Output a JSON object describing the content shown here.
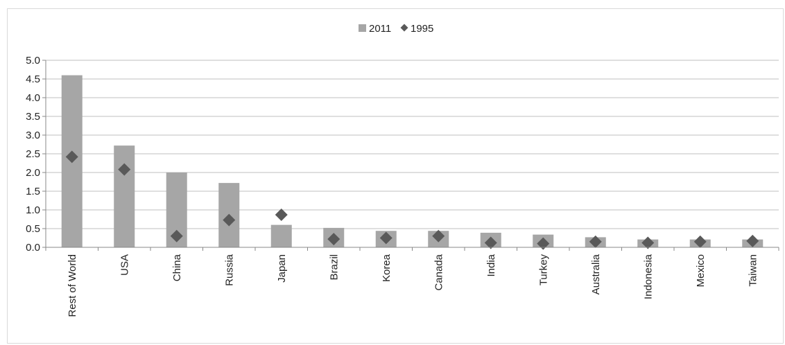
{
  "chart_data": {
    "type": "bar",
    "title": "",
    "xlabel": "",
    "ylabel": "",
    "ylim": [
      0,
      5.0
    ],
    "yticks": [
      "0.0",
      "0.5",
      "1.0",
      "1.5",
      "2.0",
      "2.5",
      "3.0",
      "3.5",
      "4.0",
      "4.5",
      "5.0"
    ],
    "grid": true,
    "legend_position": "top-center",
    "categories": [
      "Rest of World",
      "USA",
      "China",
      "Russia",
      "Japan",
      "Brazil",
      "Korea",
      "Canada",
      "India",
      "Turkey",
      "Australia",
      "Indonesia",
      "Mexico",
      "Taiwan"
    ],
    "series": [
      {
        "name": "2011",
        "mark": "bar",
        "color": "#a6a6a6",
        "values": [
          4.6,
          2.72,
          2.0,
          1.72,
          0.6,
          0.52,
          0.44,
          0.44,
          0.39,
          0.34,
          0.27,
          0.21,
          0.21,
          0.21
        ]
      },
      {
        "name": "1995",
        "mark": "diamond",
        "color": "#595959",
        "values": [
          2.42,
          2.08,
          0.3,
          0.73,
          0.87,
          0.22,
          0.25,
          0.3,
          0.12,
          0.1,
          0.15,
          0.12,
          0.15,
          0.17
        ]
      }
    ]
  }
}
